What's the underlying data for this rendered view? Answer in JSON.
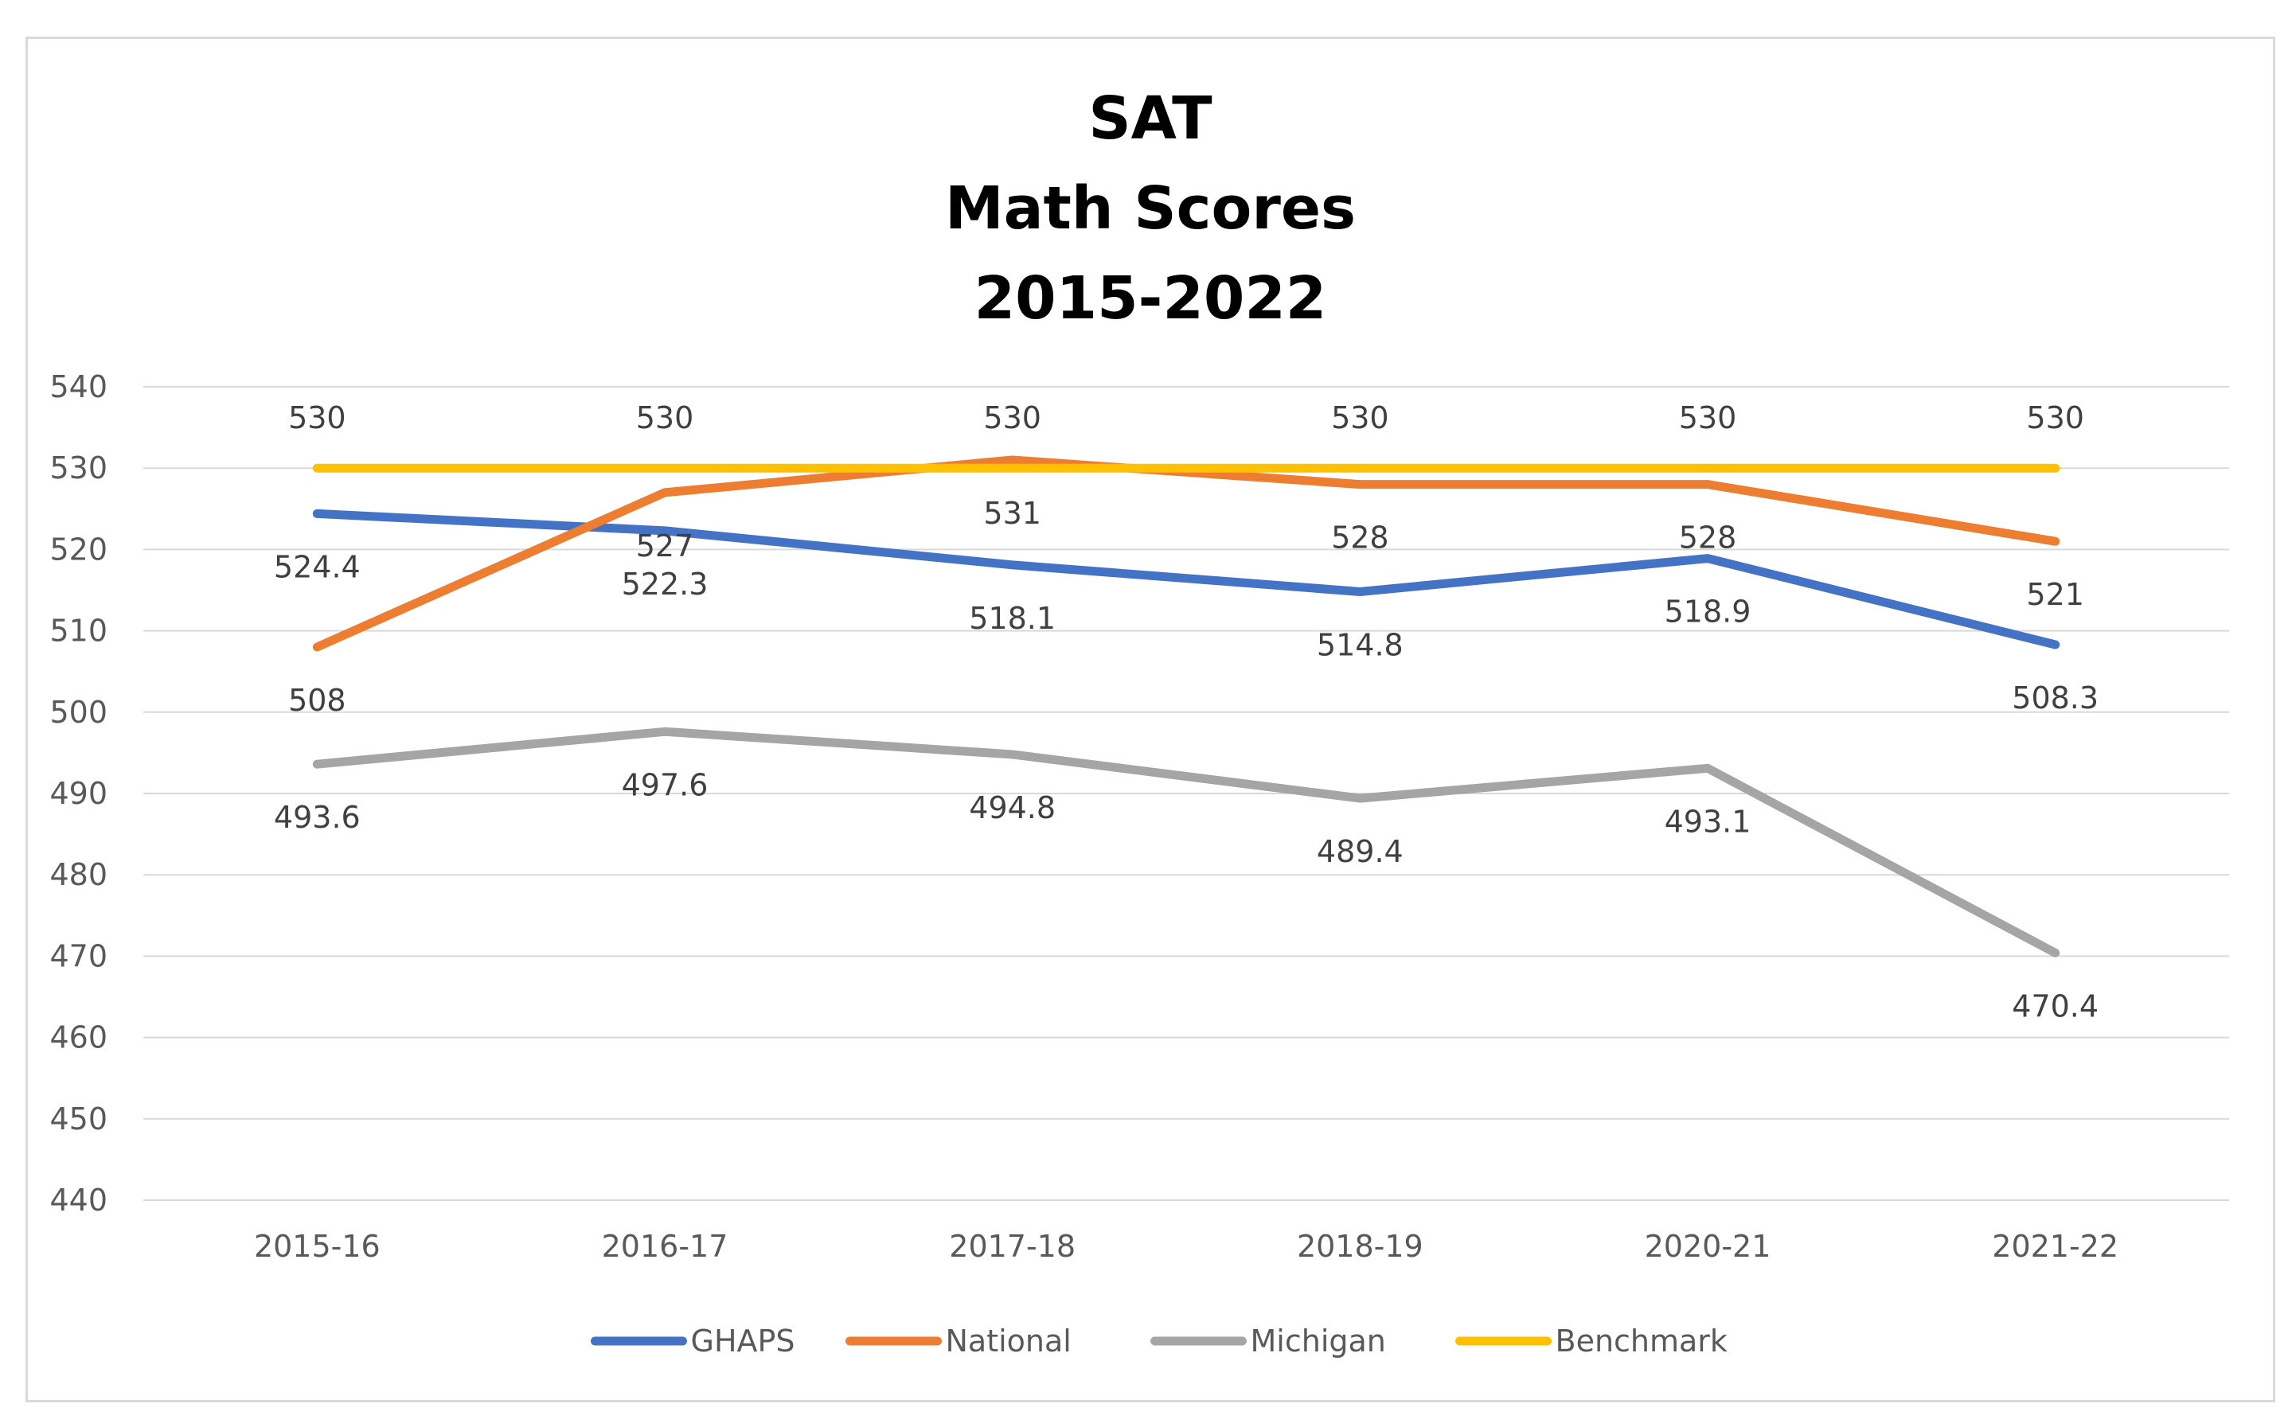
{
  "chart_data": {
    "type": "line",
    "title": [
      "SAT",
      "Math Scores",
      "2015-2022"
    ],
    "categories": [
      "2015-16",
      "2016-17",
      "2017-18",
      "2018-19",
      "2020-21",
      "2021-22"
    ],
    "ylim": [
      440,
      540
    ],
    "yticks": [
      "540",
      "530",
      "520",
      "510",
      "500",
      "490",
      "480",
      "470",
      "460",
      "450",
      "440"
    ],
    "grid": true,
    "legend": "bottom",
    "series": [
      {
        "name": "GHAPS",
        "color": "#4472c4",
        "values": [
          524.4,
          522.3,
          518.1,
          514.8,
          518.9,
          508.3
        ],
        "labels": [
          "524.4",
          "522.3",
          "518.1",
          "514.8",
          "518.9",
          "508.3"
        ],
        "label_position": "below"
      },
      {
        "name": "National",
        "color": "#ed7d31",
        "values": [
          508,
          527,
          531,
          528,
          528,
          521
        ],
        "labels": [
          "508",
          "527",
          "531",
          "528",
          "528",
          "521"
        ],
        "label_position": "below"
      },
      {
        "name": "Michigan",
        "color": "#a5a5a5",
        "values": [
          493.6,
          497.6,
          494.8,
          489.4,
          493.1,
          470.4
        ],
        "labels": [
          "493.6",
          "497.6",
          "494.8",
          "489.4",
          "493.1",
          "470.4"
        ],
        "label_position": "below"
      },
      {
        "name": "Benchmark",
        "color": "#ffc000",
        "values": [
          530,
          530,
          530,
          530,
          530,
          530
        ],
        "labels": [
          "530",
          "530",
          "530",
          "530",
          "530",
          "530"
        ],
        "label_position": "above"
      }
    ]
  }
}
